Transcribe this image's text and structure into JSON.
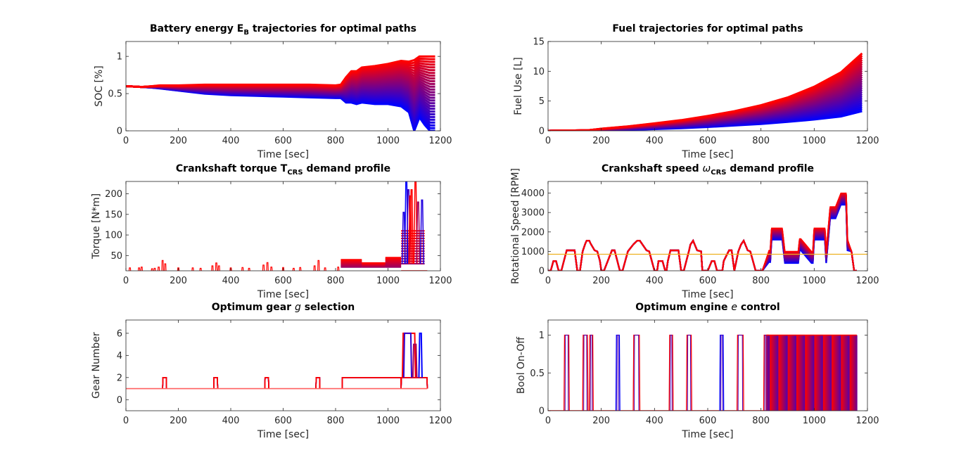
{
  "chart_data": [
    {
      "id": "battery",
      "type": "line",
      "title": {
        "pre": "Battery energy E",
        "sub": "B",
        "post": " trajectories for optimal paths"
      },
      "xlabel": "Time [sec]",
      "ylabel": "SOC [%]",
      "xlim": [
        0,
        1200
      ],
      "ylim": [
        0,
        1.2
      ],
      "xticks": [
        0,
        200,
        400,
        600,
        800,
        1000,
        1200
      ],
      "yticks": [
        0,
        0.5,
        1
      ],
      "ytick_labels": [
        "0",
        "0.5",
        "1"
      ],
      "grid": false,
      "legend": "none",
      "color_range": [
        "#0000ff",
        "#ff0000"
      ],
      "envelope": {
        "x": [
          0,
          60,
          100,
          130,
          200,
          300,
          400,
          500,
          600,
          700,
          800,
          820,
          840,
          860,
          880,
          900,
          950,
          1000,
          1050,
          1080,
          1100,
          1120,
          1140,
          1160,
          1180
        ],
        "upper": [
          0.6,
          0.59,
          0.6,
          0.61,
          0.61,
          0.62,
          0.62,
          0.62,
          0.62,
          0.62,
          0.61,
          0.62,
          0.72,
          0.8,
          0.8,
          0.85,
          0.87,
          0.9,
          0.94,
          0.93,
          0.95,
          1.0,
          1.0,
          1.0,
          1.0
        ],
        "lower": [
          0.6,
          0.59,
          0.58,
          0.57,
          0.54,
          0.5,
          0.48,
          0.47,
          0.46,
          0.45,
          0.44,
          0.44,
          0.38,
          0.38,
          0.36,
          0.38,
          0.36,
          0.36,
          0.33,
          0.25,
          0.0,
          0.18,
          0.08,
          0.0,
          0.0
        ]
      }
    },
    {
      "id": "fuel",
      "type": "line",
      "title": {
        "pre": "Fuel trajectories for optimal paths",
        "sub": "",
        "post": ""
      },
      "xlabel": "Time [sec]",
      "ylabel": "Fuel Use [L]",
      "xlim": [
        0,
        1200
      ],
      "ylim": [
        0,
        15
      ],
      "xticks": [
        0,
        200,
        400,
        600,
        800,
        1000,
        1200
      ],
      "yticks": [
        0,
        5,
        10,
        15
      ],
      "ytick_labels": [
        "0",
        "5",
        "10",
        "15"
      ],
      "grid": false,
      "legend": "none",
      "color_range": [
        "#0000ff",
        "#ff0000"
      ],
      "envelope": {
        "x": [
          0,
          150,
          200,
          300,
          400,
          500,
          600,
          700,
          800,
          900,
          1000,
          1100,
          1180
        ],
        "upper": [
          0,
          0.1,
          0.35,
          0.75,
          1.25,
          1.8,
          2.5,
          3.3,
          4.3,
          5.6,
          7.4,
          9.8,
          13.0
        ],
        "lower": [
          0,
          0.02,
          0.05,
          0.15,
          0.3,
          0.45,
          0.65,
          0.9,
          1.15,
          1.5,
          1.9,
          2.4,
          3.3
        ]
      }
    },
    {
      "id": "torque",
      "type": "line",
      "title": {
        "pre": "Crankshaft torque T",
        "sub": "CRS",
        "post": " demand profile"
      },
      "xlabel": "Time [sec]",
      "ylabel": "Torque [N*m]",
      "xlim": [
        0,
        1200
      ],
      "ylim": [
        13,
        230
      ],
      "xticks": [
        0,
        200,
        400,
        600,
        800,
        1000,
        1200
      ],
      "yticks": [
        50,
        100,
        150,
        200
      ],
      "ytick_labels": [
        "50",
        "100",
        "150",
        "200"
      ],
      "grid": false,
      "legend": "none",
      "color_range": [
        "#0000ff",
        "#ff0000"
      ],
      "spikes": [
        {
          "x": 15,
          "h": 20
        },
        {
          "x": 50,
          "h": 20
        },
        {
          "x": 60,
          "h": 22
        },
        {
          "x": 100,
          "h": 18
        },
        {
          "x": 110,
          "h": 19
        },
        {
          "x": 125,
          "h": 22
        },
        {
          "x": 140,
          "h": 38
        },
        {
          "x": 150,
          "h": 30
        },
        {
          "x": 200,
          "h": 20
        },
        {
          "x": 255,
          "h": 20
        },
        {
          "x": 285,
          "h": 19
        },
        {
          "x": 330,
          "h": 25
        },
        {
          "x": 345,
          "h": 32
        },
        {
          "x": 355,
          "h": 25
        },
        {
          "x": 400,
          "h": 20
        },
        {
          "x": 445,
          "h": 21
        },
        {
          "x": 470,
          "h": 19
        },
        {
          "x": 525,
          "h": 27
        },
        {
          "x": 540,
          "h": 33
        },
        {
          "x": 555,
          "h": 22
        },
        {
          "x": 600,
          "h": 21
        },
        {
          "x": 640,
          "h": 19
        },
        {
          "x": 665,
          "h": 21
        },
        {
          "x": 720,
          "h": 25
        },
        {
          "x": 735,
          "h": 38
        },
        {
          "x": 760,
          "h": 20
        },
        {
          "x": 810,
          "h": 22
        }
      ],
      "bands": [
        {
          "x0": 820,
          "x1": 900,
          "lo": 22,
          "hi": 40
        },
        {
          "x0": 900,
          "x1": 990,
          "lo": 22,
          "hi": 32
        },
        {
          "x0": 990,
          "x1": 1050,
          "lo": 22,
          "hi": 45
        },
        {
          "x0": 1050,
          "x1": 1140,
          "lo": 30,
          "hi": 110
        }
      ],
      "peaks": [
        {
          "x": 1070,
          "h": 230,
          "c": "#0000ff"
        },
        {
          "x": 1078,
          "h": 210,
          "c": "#4000c0"
        },
        {
          "x": 1090,
          "h": 210,
          "c": "#ff0000"
        },
        {
          "x": 1105,
          "h": 230,
          "c": "#ff0000"
        },
        {
          "x": 1115,
          "h": 180,
          "c": "#a00060"
        },
        {
          "x": 1130,
          "h": 185,
          "c": "#2000e0"
        },
        {
          "x": 1060,
          "h": 155,
          "c": "#2000e0"
        },
        {
          "x": 1085,
          "h": 195,
          "c": "#ff0000"
        }
      ]
    },
    {
      "id": "speed",
      "type": "line",
      "title": {
        "pre": "Crankshaft speed ",
        "sym": "ω",
        "sub": "CRS",
        "post": " demand profile"
      },
      "xlabel": "Time [sec]",
      "ylabel": "Rotational Speed [RPM]",
      "xlim": [
        0,
        1200
      ],
      "ylim": [
        0,
        4600
      ],
      "xticks": [
        0,
        200,
        400,
        600,
        800,
        1000,
        1200
      ],
      "yticks": [
        0,
        1000,
        2000,
        3000,
        4000
      ],
      "ytick_labels": [
        "0",
        "1000",
        "2000",
        "3000",
        "4000"
      ],
      "grid": false,
      "legend": "none",
      "reference_line": {
        "y": 850,
        "color": "#edb120"
      },
      "color_range": [
        "#0000ff",
        "#ff0000"
      ],
      "profile": {
        "x": [
          0,
          10,
          20,
          30,
          40,
          50,
          70,
          100,
          110,
          120,
          130,
          140,
          145,
          155,
          160,
          175,
          185,
          195,
          200,
          210,
          240,
          250,
          270,
          280,
          290,
          300,
          320,
          335,
          345,
          355,
          370,
          380,
          400,
          410,
          415,
          430,
          440,
          445,
          450,
          460,
          490,
          500,
          510,
          530,
          535,
          545,
          560,
          575,
          580,
          590,
          600,
          615,
          625,
          635,
          655,
          660,
          680,
          690,
          700,
          715,
          725,
          735,
          750,
          760,
          770,
          780,
          800,
          805,
          830,
          835,
          840,
          880,
          890,
          940,
          945,
          950,
          990,
          995,
          1000,
          1040,
          1045,
          1060,
          1080,
          1100,
          1120,
          1125,
          1140,
          1150,
          1160
        ],
        "y": [
          0,
          0,
          500,
          500,
          0,
          0,
          1050,
          1050,
          0,
          0,
          1000,
          1400,
          1550,
          1550,
          1400,
          1050,
          1000,
          500,
          0,
          0,
          1050,
          1050,
          0,
          0,
          500,
          1000,
          1350,
          1550,
          1550,
          1350,
          1050,
          1000,
          0,
          0,
          500,
          500,
          0,
          0,
          500,
          1050,
          1050,
          0,
          0,
          1050,
          1350,
          1550,
          1050,
          1000,
          0,
          0,
          0,
          500,
          500,
          0,
          0,
          500,
          1050,
          1050,
          0,
          1000,
          1350,
          1550,
          1050,
          1000,
          500,
          0,
          0,
          0,
          1050,
          1050,
          2200,
          2200,
          1000,
          1000,
          1650,
          1650,
          1000,
          1000,
          2200,
          2200,
          1000,
          3300,
          3300,
          4000,
          4000,
          1650,
          1000,
          0,
          0
        ]
      }
    },
    {
      "id": "gear",
      "type": "line",
      "title": {
        "pre": "Optimum gear ",
        "sym": "g",
        "sub": "",
        "post": " selection"
      },
      "xlabel": "Time [sec]",
      "ylabel": "Gear Number",
      "xlim": [
        0,
        1200
      ],
      "ylim": [
        -1,
        7.2
      ],
      "xticks": [
        0,
        200,
        400,
        600,
        800,
        1000,
        1200
      ],
      "yticks": [
        0,
        2,
        4,
        6
      ],
      "ytick_labels": [
        "0",
        "2",
        "4",
        "6"
      ],
      "grid": false,
      "legend": "none",
      "color_range": [
        "#0000ff",
        "#ff0000"
      ],
      "baseline": 1,
      "pulses": [
        {
          "x0": 140,
          "x1": 155,
          "v": 2
        },
        {
          "x0": 335,
          "x1": 350,
          "v": 2
        },
        {
          "x0": 530,
          "x1": 545,
          "v": 2
        },
        {
          "x0": 725,
          "x1": 740,
          "v": 2
        },
        {
          "x0": 825,
          "x1": 1050,
          "v": 2
        },
        {
          "x0": 1050,
          "x1": 1150,
          "v": 2
        }
      ],
      "peaks": [
        {
          "x0": 1055,
          "x1": 1105,
          "v": 6,
          "c": "#ff0000"
        },
        {
          "x0": 1060,
          "x1": 1090,
          "v": 6,
          "c": "#3000d0"
        },
        {
          "x0": 1118,
          "x1": 1130,
          "v": 6,
          "c": "#0000ff"
        },
        {
          "x0": 1095,
          "x1": 1110,
          "v": 5,
          "c": "#a00060"
        }
      ]
    },
    {
      "id": "engine",
      "type": "line",
      "title": {
        "pre": "Optimum engine ",
        "sym": "e",
        "sub": "",
        "post": " control"
      },
      "xlabel": "Time [sec]",
      "ylabel": "Bool On-Off",
      "xlim": [
        0,
        1200
      ],
      "ylim": [
        0,
        1.2
      ],
      "xticks": [
        0,
        200,
        400,
        600,
        800,
        1000,
        1200
      ],
      "yticks": [
        0,
        0.5,
        1
      ],
      "ytick_labels": [
        "0",
        "0.5",
        "1"
      ],
      "grid": false,
      "legend": "none",
      "color_range": [
        "#0000ff",
        "#ff0000"
      ],
      "on_intervals": [
        {
          "x0": 60,
          "x1": 80,
          "c": "#ff0000"
        },
        {
          "x0": 130,
          "x1": 150,
          "c": "#ff0000"
        },
        {
          "x0": 155,
          "x1": 170,
          "c": "#ff0000"
        },
        {
          "x0": 255,
          "x1": 270,
          "c": "#0000ff"
        },
        {
          "x0": 320,
          "x1": 345,
          "c": "#ff0000"
        },
        {
          "x0": 455,
          "x1": 470,
          "c": "#ff0000"
        },
        {
          "x0": 520,
          "x1": 540,
          "c": "#ff0000"
        },
        {
          "x0": 645,
          "x1": 660,
          "c": "#0000ff"
        },
        {
          "x0": 710,
          "x1": 735,
          "c": "#ff0000"
        },
        {
          "x0": 810,
          "x1": 830,
          "c": "#ff0000"
        }
      ],
      "dense_band": {
        "x0": 820,
        "x1": 1160,
        "lo": 0,
        "hi": 1
      }
    }
  ]
}
